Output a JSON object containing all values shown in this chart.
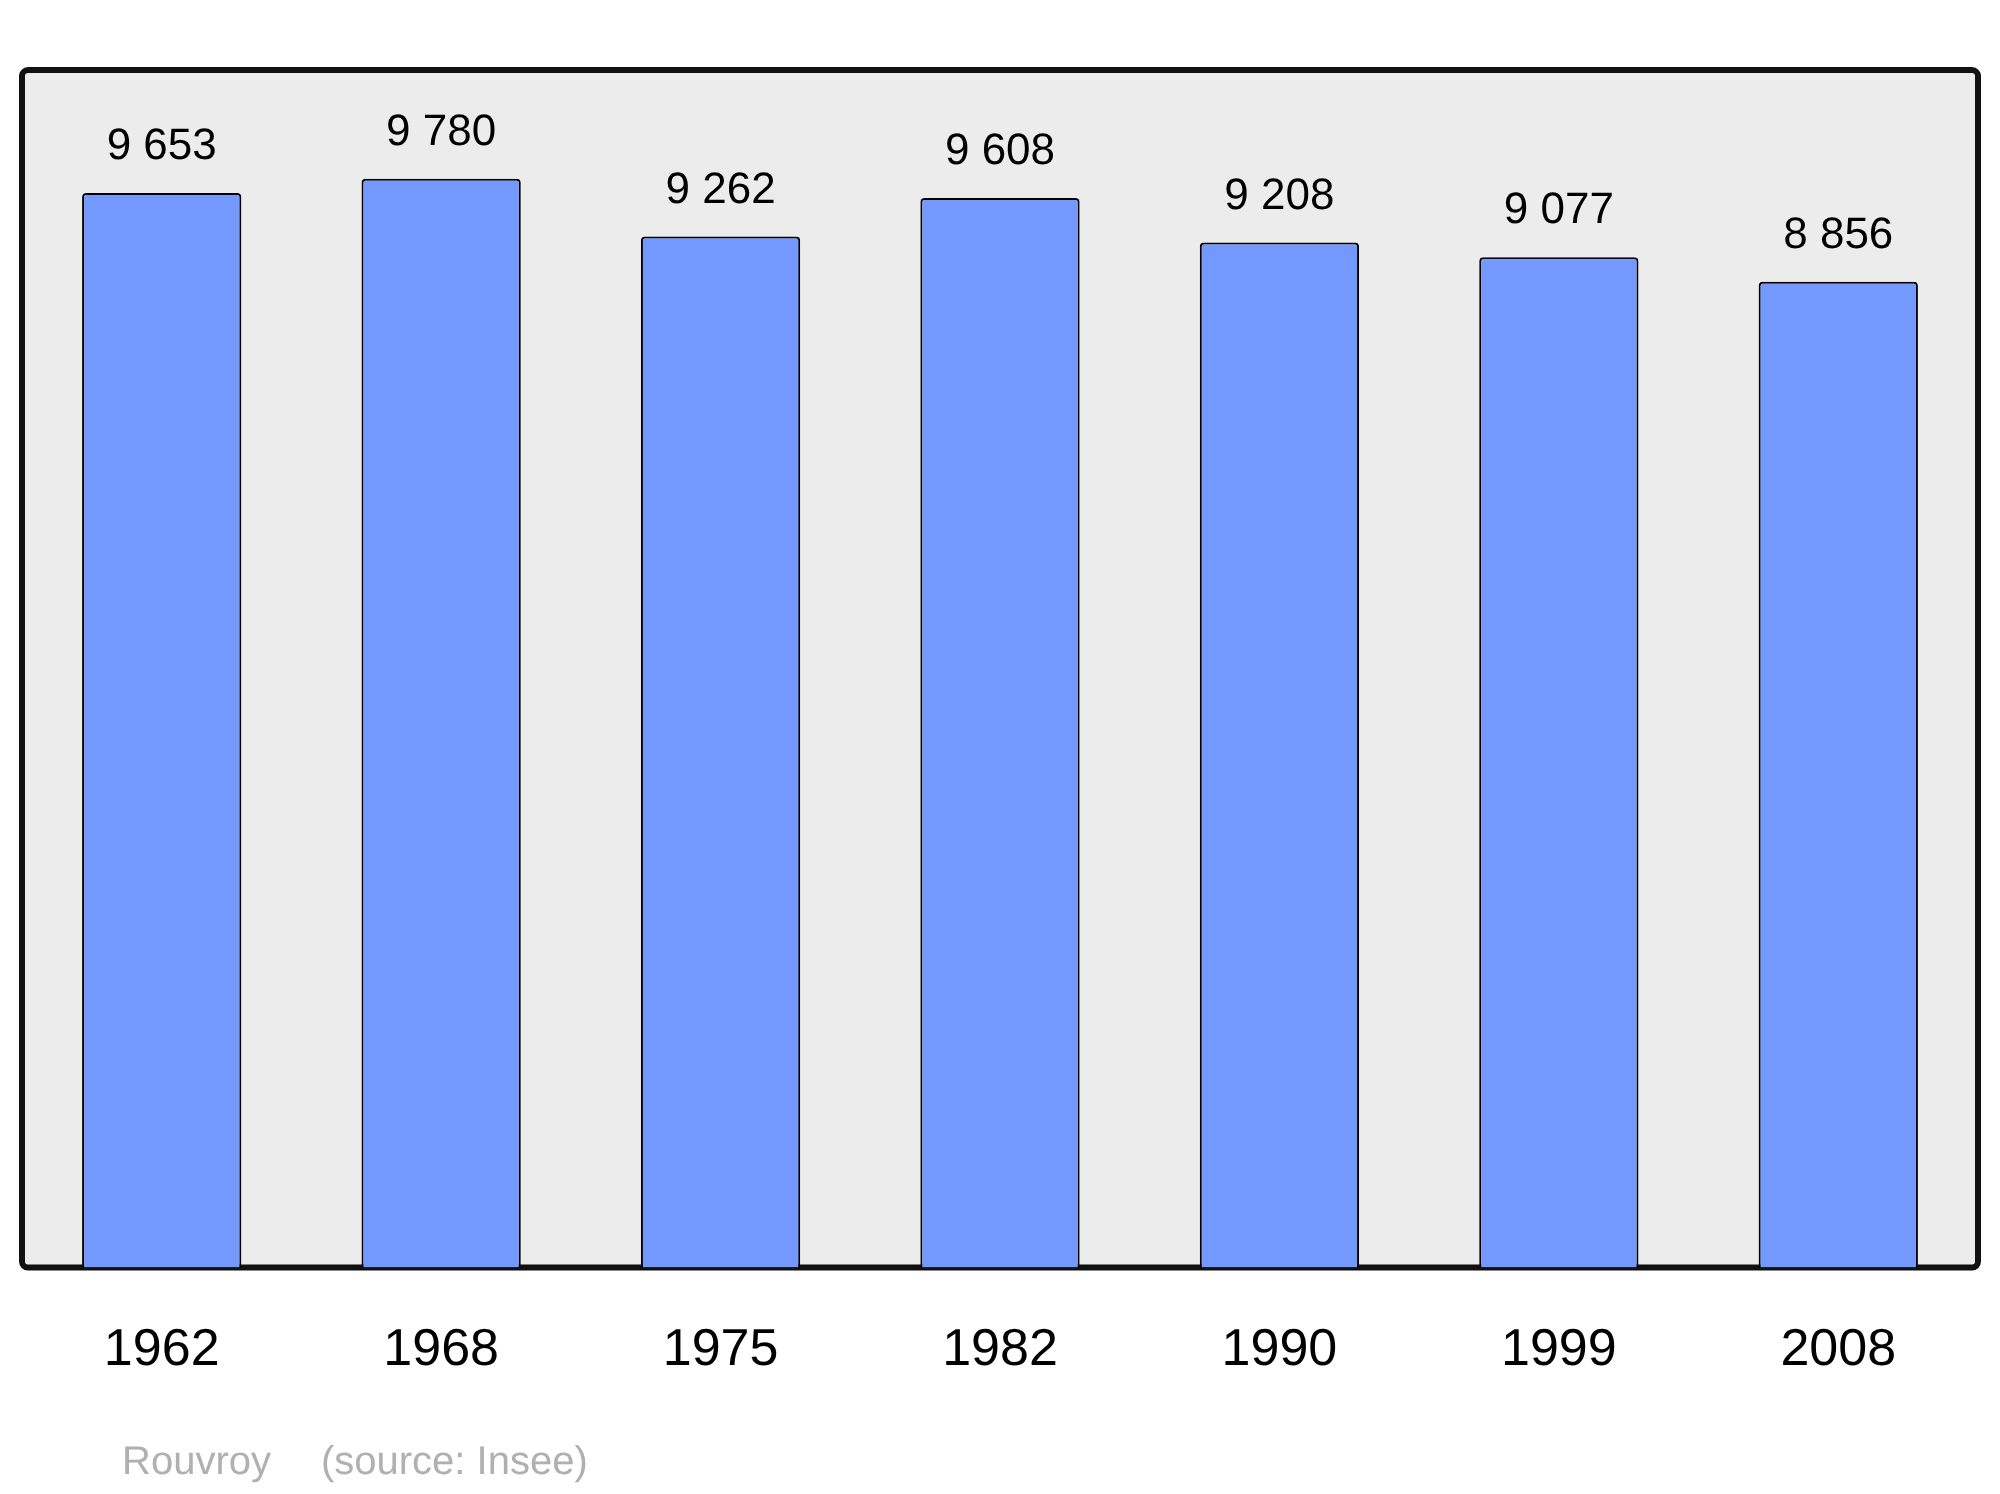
{
  "chart_data": {
    "type": "bar",
    "categories": [
      "1962",
      "1968",
      "1975",
      "1982",
      "1990",
      "1999",
      "2008"
    ],
    "values": [
      9653,
      9780,
      9262,
      9608,
      9208,
      9077,
      8856
    ],
    "value_labels": [
      "9 653",
      "9 780",
      "9 262",
      "9 608",
      "9 208",
      "9 077",
      "8 856"
    ],
    "color": "#7399ff",
    "grid": false,
    "legend": false,
    "annotations": [
      "Rouvroy",
      "(source: Insee)"
    ]
  }
}
